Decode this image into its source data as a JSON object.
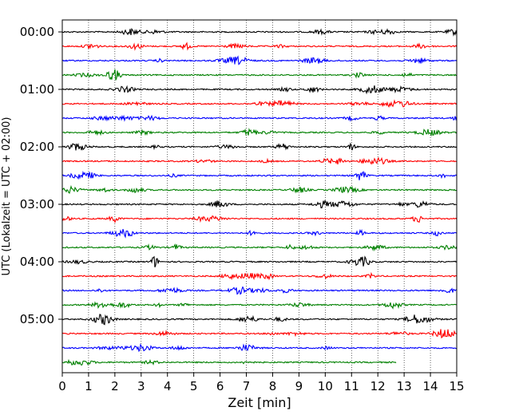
{
  "chart_data": {
    "type": "line",
    "title": "",
    "xlabel": "Zeit  [min]",
    "ylabel": "UTC (Lokalzeit = UTC + 02:00)",
    "xlim": [
      0,
      15
    ],
    "x_ticks": [
      "0",
      "1",
      "2",
      "3",
      "4",
      "5",
      "6",
      "7",
      "8",
      "9",
      "10",
      "11",
      "12",
      "13",
      "14",
      "15"
    ],
    "y_ticks": [
      "00:00",
      "01:00",
      "02:00",
      "03:00",
      "04:00",
      "05:00"
    ],
    "grid": "vertical dotted",
    "legend": "none",
    "trace_minutes": 15,
    "row_colors": [
      "#000000",
      "#ff0000",
      "#0000ff",
      "#008000"
    ],
    "rows": [
      {
        "start": "00:00",
        "end_min": 15
      },
      {
        "start": "00:15",
        "end_min": 15
      },
      {
        "start": "00:30",
        "end_min": 15
      },
      {
        "start": "00:45",
        "end_min": 15
      },
      {
        "start": "01:00",
        "end_min": 15
      },
      {
        "start": "01:15",
        "end_min": 15
      },
      {
        "start": "01:30",
        "end_min": 15
      },
      {
        "start": "01:45",
        "end_min": 15
      },
      {
        "start": "02:00",
        "end_min": 15
      },
      {
        "start": "02:15",
        "end_min": 15
      },
      {
        "start": "02:30",
        "end_min": 15
      },
      {
        "start": "02:45",
        "end_min": 15
      },
      {
        "start": "03:00",
        "end_min": 15
      },
      {
        "start": "03:15",
        "end_min": 15
      },
      {
        "start": "03:30",
        "end_min": 15
      },
      {
        "start": "03:45",
        "end_min": 15
      },
      {
        "start": "04:00",
        "end_min": 15
      },
      {
        "start": "04:15",
        "end_min": 15
      },
      {
        "start": "04:30",
        "end_min": 15
      },
      {
        "start": "04:45",
        "end_min": 15
      },
      {
        "start": "05:00",
        "end_min": 15
      },
      {
        "start": "05:15",
        "end_min": 15
      },
      {
        "start": "05:30",
        "end_min": 15
      },
      {
        "start": "05:45",
        "end_min": 12.7
      }
    ]
  }
}
